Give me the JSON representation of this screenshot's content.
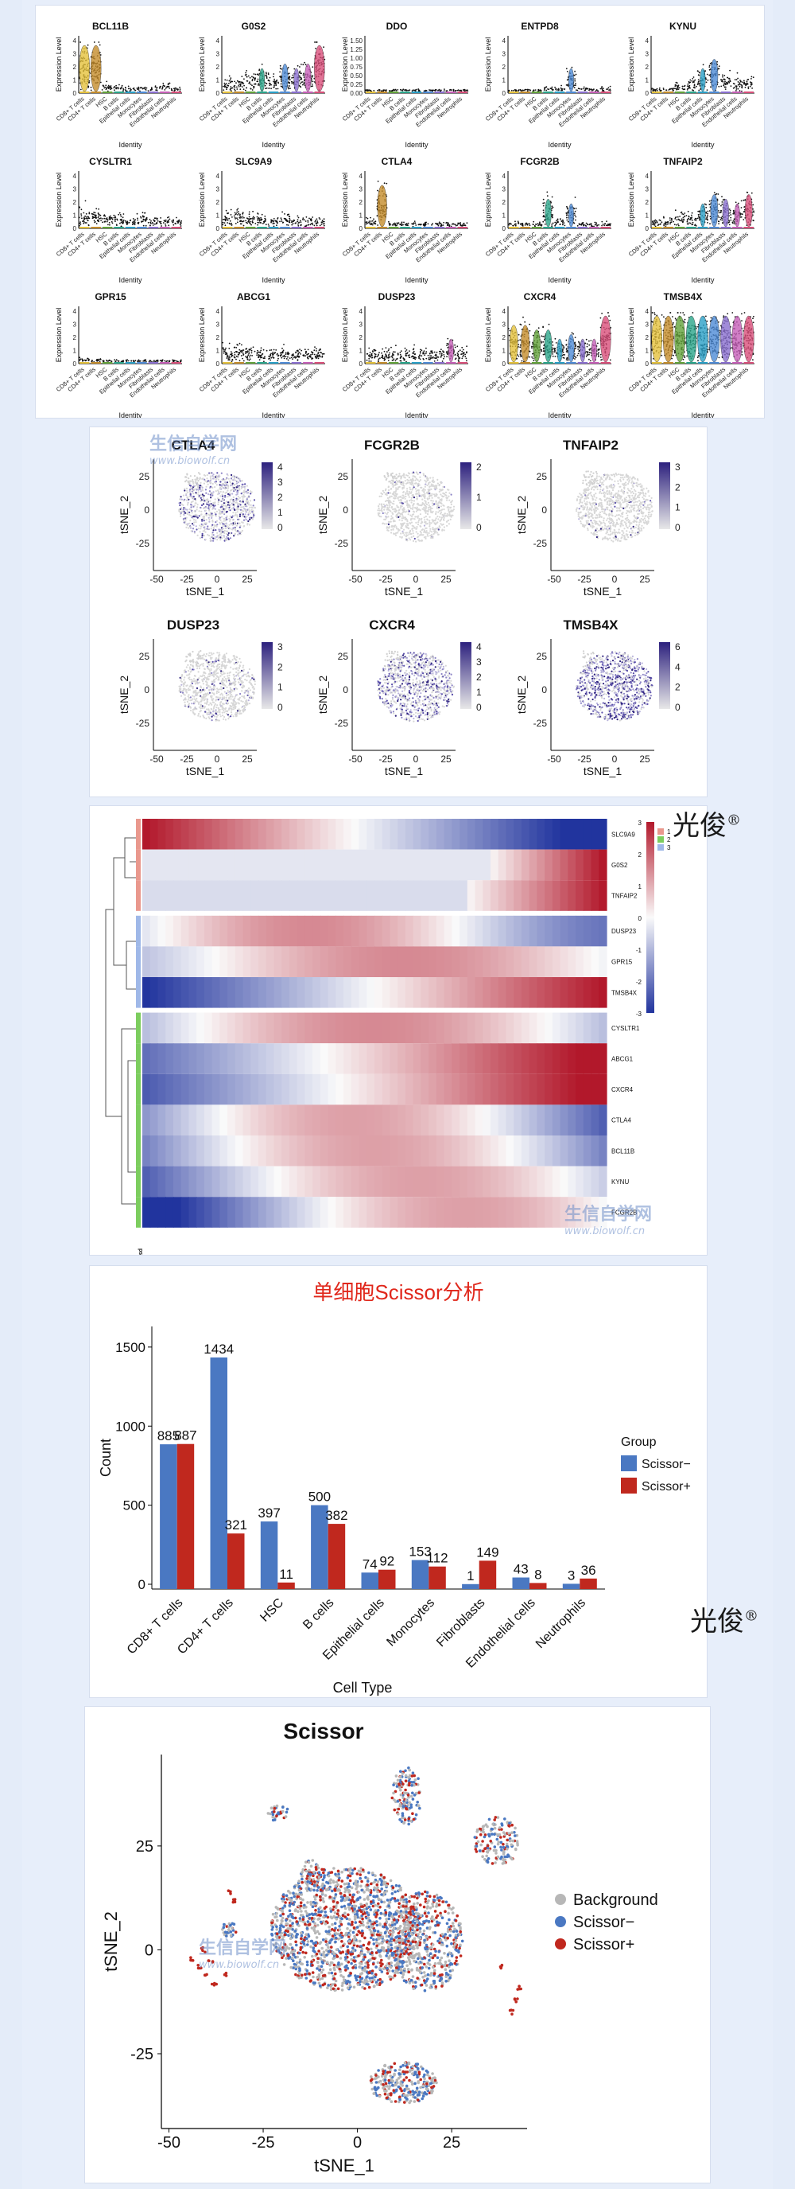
{
  "brand": {
    "mark": "光俊",
    "reg": "®"
  },
  "watermark": {
    "cn": "生信自学网",
    "url": "www.biowolf.cn"
  },
  "violin": {
    "ylabel": "Expression Level",
    "xlabel": "Identity",
    "categories": [
      "CD8+ T cells",
      "CD4+ T cells",
      "HSC",
      "B cells",
      "Epithelial cells",
      "Monocytes",
      "Fibroblasts",
      "Endothelial cells",
      "Neutrophils"
    ],
    "genes": [
      "BCL11B",
      "G0S2",
      "DDO",
      "ENTPD8",
      "KYNU",
      "CYSLTR1",
      "SLC9A9",
      "CTLA4",
      "FCGR2B",
      "TNFAIP2",
      "GPR15",
      "ABCG1",
      "DUSP23",
      "CXCR4",
      "TMSB4X"
    ],
    "ddo_ticks": [
      "1.50",
      "1.25",
      "1.00",
      "0.75",
      "0.50",
      "0.25",
      "0.00"
    ]
  },
  "tsne": {
    "xlabel": "tSNE_1",
    "ylabel": "tSNE_2",
    "xticks": [
      "-50",
      "-25",
      "0",
      "25"
    ],
    "yticks": [
      "25",
      "0",
      "-25"
    ],
    "panels": [
      {
        "gene": "CTLA4",
        "legend": [
          "4",
          "3",
          "2",
          "1",
          "0"
        ],
        "density": 0.55
      },
      {
        "gene": "FCGR2B",
        "legend": [
          "2",
          "1",
          "0"
        ],
        "density": 0.05
      },
      {
        "gene": "TNFAIP2",
        "legend": [
          "3",
          "2",
          "1",
          "0"
        ],
        "density": 0.06
      },
      {
        "gene": "DUSP23",
        "legend": [
          "3",
          "2",
          "1",
          "0"
        ],
        "density": 0.18
      },
      {
        "gene": "CXCR4",
        "legend": [
          "4",
          "3",
          "2",
          "1",
          "0"
        ],
        "density": 0.7
      },
      {
        "gene": "TMSB4X",
        "legend": [
          "6",
          "4",
          "2",
          "0"
        ],
        "density": 1.0
      }
    ]
  },
  "heatmap": {
    "genes": [
      "SLC9A9",
      "G0S2",
      "TNFAIP2",
      "DUSP23",
      "GPR15",
      "TMSB4X",
      "CYSLTR1",
      "ABCG1",
      "CXCR4",
      "CTLA4",
      "BCL11B",
      "KYNU",
      "FCGR2B"
    ],
    "cluster_legend": [
      "1",
      "2",
      "3"
    ],
    "scale_ticks": [
      "3",
      "2",
      "1",
      "0",
      "-1",
      "-2",
      "-3"
    ],
    "bottom_label": "pseudo"
  },
  "bar_title": "单细胞Scissor分析",
  "chart_data": [
    {
      "type": "bar",
      "title": "单细胞Scissor分析",
      "xlabel": "Cell Type",
      "ylabel": "Count",
      "ylim": [
        0,
        1600
      ],
      "yticks": [
        0,
        500,
        1000,
        1500
      ],
      "categories": [
        "CD8+ T cells",
        "CD4+ T cells",
        "HSC",
        "B cells",
        "Epithelial cells",
        "Monocytes",
        "Fibroblasts",
        "Endothelial cells",
        "Neutrophils"
      ],
      "legend_title": "Group",
      "legend_position": "right",
      "series": [
        {
          "name": "Scissor−",
          "color": "#4a78c2",
          "values": [
            885,
            1434,
            397,
            500,
            74,
            153,
            1,
            43,
            3
          ]
        },
        {
          "name": "Scissor+",
          "color": "#c0281e",
          "values": [
            887,
            321,
            11,
            382,
            92,
            112,
            149,
            8,
            36
          ]
        }
      ]
    },
    {
      "type": "scatter",
      "title": "Scissor",
      "xlabel": "tSNE_1",
      "ylabel": "tSNE_2",
      "xticks": [
        -50,
        -25,
        0,
        25
      ],
      "yticks": [
        25,
        0,
        -25
      ],
      "xlim": [
        -52,
        45
      ],
      "ylim": [
        -43,
        47
      ],
      "legend_position": "right",
      "series": [
        {
          "name": "Background",
          "color": "#b7b7b7"
        },
        {
          "name": "Scissor−",
          "color": "#4a78c2"
        },
        {
          "name": "Scissor+",
          "color": "#c0281e"
        }
      ]
    }
  ]
}
